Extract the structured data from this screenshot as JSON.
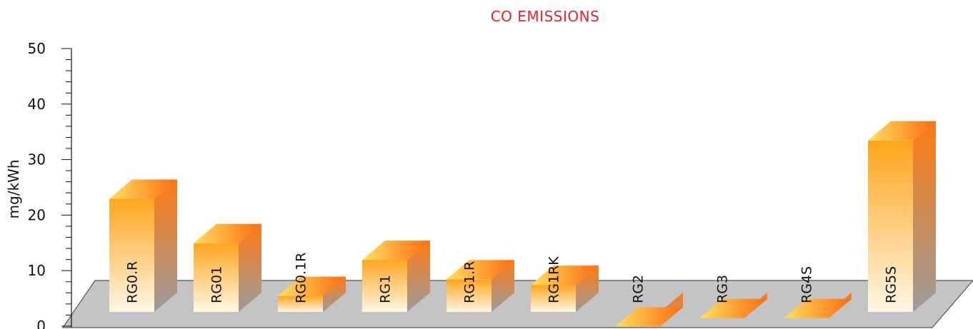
{
  "chart_data": {
    "type": "bar",
    "title": "CO EMISSIONS",
    "ylabel": "mg/kWh",
    "xlabel": "",
    "ylim": [
      0,
      50
    ],
    "y_ticks": [
      0,
      10,
      20,
      30,
      40,
      50
    ],
    "categories": [
      "RG0.R",
      "RG01",
      "RG0.1R",
      "RG1",
      "RG1.R",
      "RG1RK",
      "RG2",
      "RG3",
      "RG4S",
      "RG5S"
    ],
    "values": [
      25,
      17,
      7.5,
      14,
      10.5,
      9.5,
      2,
      3.5,
      3.5,
      35.5
    ],
    "grid": false,
    "legend": "none",
    "three_d": true
  },
  "colors": {
    "title": "#e8252b",
    "bar_front_top": "#ffa51c",
    "bar_front_bottom": "#fff7e4",
    "bar_side_top": "#ff7a12",
    "bar_side_bottom": "#9c9c9c",
    "bar_top_left": "#ffe060",
    "bar_top_right": "#ff6a10",
    "floor": "#c4c4c4"
  }
}
